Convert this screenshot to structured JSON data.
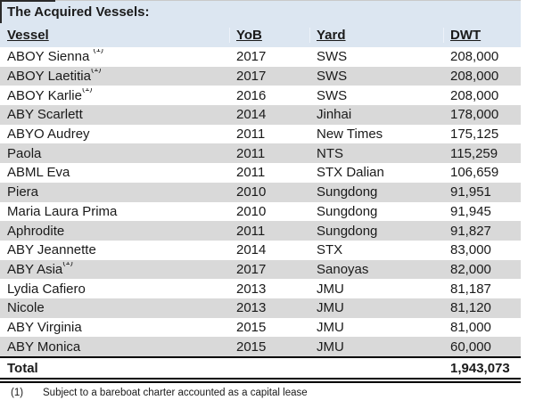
{
  "title": "The Acquired Vessels:",
  "columns": [
    "Vessel",
    "YoB",
    "Yard",
    "DWT"
  ],
  "rows": [
    {
      "vessel": "ABOY Sienna ",
      "sup": "(1)",
      "yob": "2017",
      "yard": "SWS",
      "dwt": "208,000"
    },
    {
      "vessel": "ABOY Laetitia",
      "sup": "(1)",
      "yob": "2017",
      "yard": "SWS",
      "dwt": "208,000"
    },
    {
      "vessel": "ABOY Karlie",
      "sup": "(1)",
      "yob": "2016",
      "yard": "SWS",
      "dwt": "208,000"
    },
    {
      "vessel": "ABY Scarlett",
      "yob": "2014",
      "yard": "Jinhai",
      "dwt": "178,000"
    },
    {
      "vessel": "ABYO Audrey",
      "yob": "2011",
      "yard": "New Times",
      "dwt": "175,125"
    },
    {
      "vessel": "Paola",
      "yob": "2011",
      "yard": "NTS",
      "dwt": "115,259"
    },
    {
      "vessel": "ABML Eva",
      "yob": "2011",
      "yard": "STX Dalian",
      "dwt": "106,659"
    },
    {
      "vessel": "Piera",
      "yob": "2010",
      "yard": "Sungdong",
      "dwt": "91,951"
    },
    {
      "vessel": "Maria Laura Prima",
      "yob": "2010",
      "yard": "Sungdong",
      "dwt": "91,945"
    },
    {
      "vessel": "Aphrodite",
      "yob": "2011",
      "yard": "Sungdong",
      "dwt": "91,827"
    },
    {
      "vessel": "ABY Jeannette",
      "yob": "2014",
      "yard": "STX",
      "dwt": "83,000"
    },
    {
      "vessel": "ABY Asia",
      "sup": "(1)",
      "yob": "2017",
      "yard": "Sanoyas",
      "dwt": "82,000"
    },
    {
      "vessel": "Lydia Cafiero",
      "yob": "2013",
      "yard": "JMU",
      "dwt": "81,187"
    },
    {
      "vessel": "Nicole",
      "yob": "2013",
      "yard": "JMU",
      "dwt": "81,120"
    },
    {
      "vessel": "ABY Virginia",
      "yob": "2015",
      "yard": "JMU",
      "dwt": "81,000"
    },
    {
      "vessel": "ABY Monica",
      "yob": "2015",
      "yard": "JMU",
      "dwt": "60,000"
    }
  ],
  "total": {
    "label": "Total",
    "dwt": "1,943,073"
  },
  "footnote": {
    "marker": "(1)",
    "text": "Subject to a bareboat charter accounted as a capital lease"
  },
  "colors": {
    "header_bg": "#dce6f1",
    "stripe_bg": "#d9d9d9",
    "rule": "#000000"
  }
}
